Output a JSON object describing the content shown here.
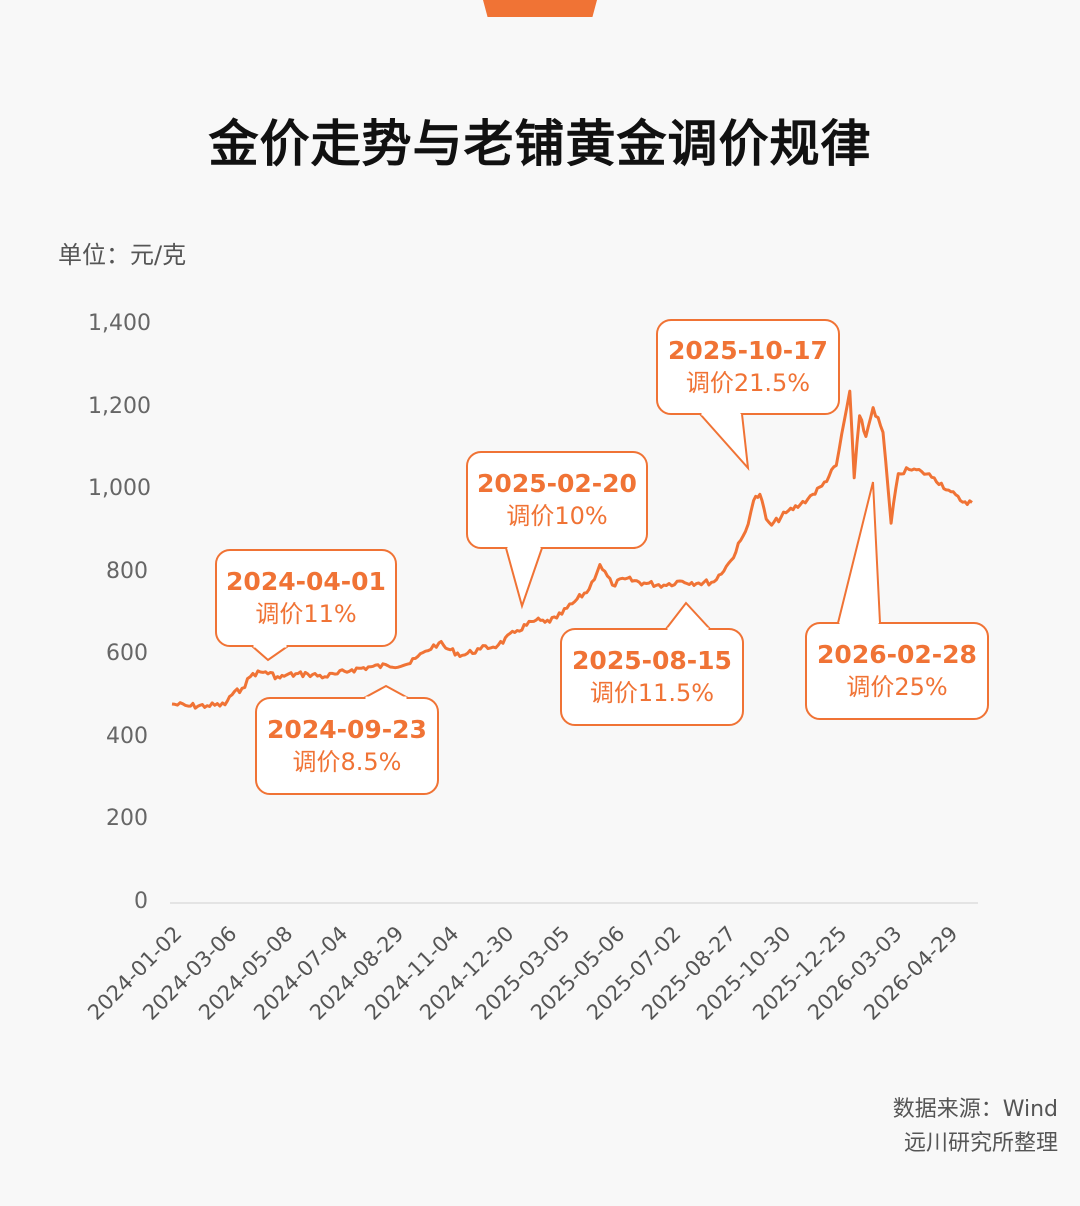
{
  "title": "金价走势与老铺黄金调价规律",
  "unit": "单位：元/克",
  "colors": {
    "accent": "#f07335",
    "axis": "#dddddd",
    "text": "#555555"
  },
  "source": {
    "line1": "数据来源：Wind",
    "line2": "远川研究所整理"
  },
  "chart_data": {
    "type": "line",
    "title": "金价走势与老铺黄金调价规律",
    "ylabel": "单位：元/克",
    "ylim": [
      0,
      1400
    ],
    "y_ticks": [
      "0",
      "200",
      "400",
      "600",
      "800",
      "1,000",
      "1,200",
      "1,400"
    ],
    "x_ticks": [
      "2024-01-02",
      "2024-03-06",
      "2024-05-08",
      "2024-07-04",
      "2024-08-29",
      "2024-11-04",
      "2024-12-30",
      "2025-03-05",
      "2025-05-06",
      "2025-07-02",
      "2025-08-27",
      "2025-10-30",
      "2025-12-25",
      "2026-03-03",
      "2026-04-29"
    ],
    "grid": false,
    "series": [
      {
        "name": "",
        "x": [
          "2024-01-02",
          "2024-01-20",
          "2024-02-10",
          "2024-03-01",
          "2024-03-06",
          "2024-03-20",
          "2024-04-01",
          "2024-04-15",
          "2024-05-01",
          "2024-05-08",
          "2024-06-01",
          "2024-06-20",
          "2024-07-04",
          "2024-07-20",
          "2024-08-10",
          "2024-08-29",
          "2024-09-23",
          "2024-10-10",
          "2024-10-25",
          "2024-11-04",
          "2024-11-20",
          "2024-12-10",
          "2024-12-30",
          "2025-01-20",
          "2025-02-10",
          "2025-02-20",
          "2025-03-05",
          "2025-03-25",
          "2025-04-10",
          "2025-04-22",
          "2025-05-06",
          "2025-05-20",
          "2025-06-10",
          "2025-07-02",
          "2025-07-20",
          "2025-08-10",
          "2025-08-27",
          "2025-09-15",
          "2025-10-01",
          "2025-10-10",
          "2025-10-17",
          "2025-10-24",
          "2025-10-30",
          "2025-11-15",
          "2025-12-01",
          "2025-12-15",
          "2025-12-25",
          "2026-01-10",
          "2026-01-25",
          "2026-01-30",
          "2026-02-05",
          "2026-02-12",
          "2026-02-20",
          "2026-03-03",
          "2026-03-12",
          "2026-03-20",
          "2026-04-01",
          "2026-04-15",
          "2026-04-29",
          "2026-05-15",
          "2026-05-28",
          "2026-06-10"
        ],
        "values": [
          482,
          477,
          478,
          480,
          500,
          520,
          556,
          560,
          545,
          552,
          555,
          548,
          555,
          565,
          572,
          575,
          580,
          610,
          630,
          615,
          600,
          615,
          625,
          660,
          685,
          680,
          690,
          730,
          760,
          820,
          770,
          785,
          775,
          770,
          780,
          775,
          778,
          830,
          900,
          975,
          990,
          930,
          915,
          945,
          965,
          990,
          1010,
          1060,
          1240,
          1030,
          1180,
          1130,
          1200,
          1140,
          920,
          1040,
          1050,
          1045,
          1030,
          1000,
          975,
          970
        ]
      }
    ],
    "annotations": [
      {
        "date": "2024-04-01",
        "text": "调价11%"
      },
      {
        "date": "2024-09-23",
        "text": "调价8.5%"
      },
      {
        "date": "2025-02-20",
        "text": "调价10%"
      },
      {
        "date": "2025-08-15",
        "text": "调价11.5%"
      },
      {
        "date": "2025-10-17",
        "text": "调价21.5%"
      },
      {
        "date": "2026-02-28",
        "text": "调价25%"
      }
    ]
  }
}
